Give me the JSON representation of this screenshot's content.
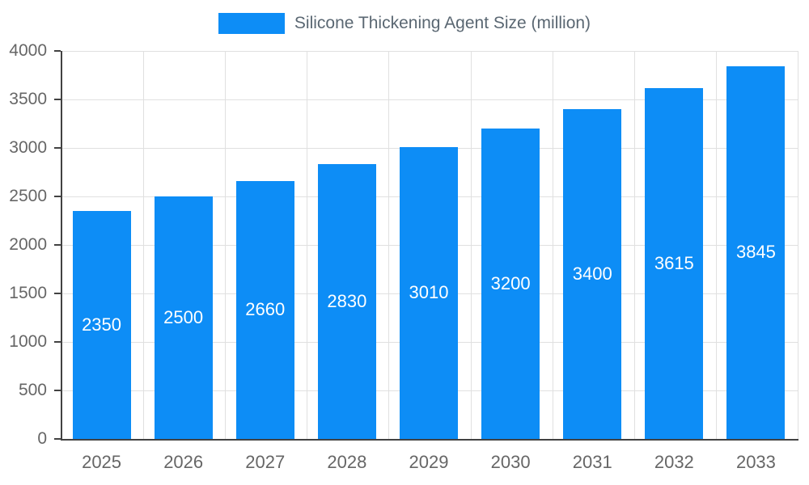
{
  "colors": {
    "bar": "#0d8df6",
    "grid": "#e0e0e0",
    "axis": "#424242",
    "tick_text": "#666666",
    "legend_text": "#5a6772",
    "bar_label": "#ffffff",
    "background": "#ffffff"
  },
  "chart_data": {
    "type": "bar",
    "legend_label": "Silicone Thickening Agent Size (million)",
    "categories": [
      "2025",
      "2026",
      "2027",
      "2028",
      "2029",
      "2030",
      "2031",
      "2032",
      "2033"
    ],
    "values": [
      2350,
      2500,
      2660,
      2830,
      3010,
      3200,
      3400,
      3615,
      3845
    ],
    "title": "",
    "xlabel": "",
    "ylabel": "",
    "ylim": [
      0,
      4000
    ],
    "ytick_step": 500,
    "ytick_labels": [
      "0",
      "500",
      "1000",
      "1500",
      "2000",
      "2500",
      "3000",
      "3500",
      "4000"
    ],
    "grid": true,
    "legend_position": "top",
    "data_labels": "inside-center"
  }
}
